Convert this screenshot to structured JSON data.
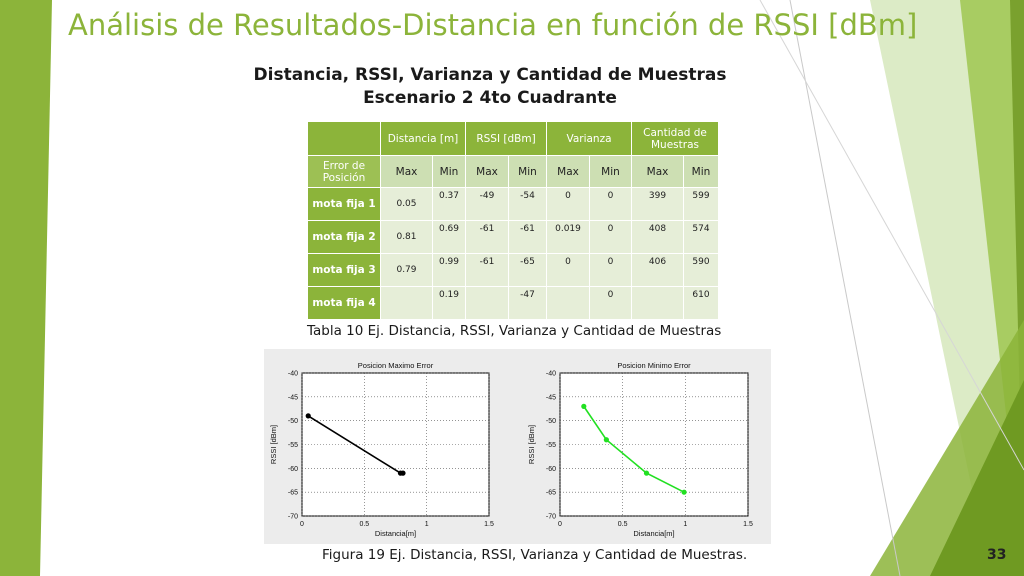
{
  "slide": {
    "title": "Análisis de Resultados-Distancia en función de RSSI [dBm]",
    "subtitle_line1": "Distancia, RSSI, Varianza y Cantidad de Muestras",
    "subtitle_line2": "Escenario 2  4to Cuadrante",
    "table_caption": "Tabla 10 Ej. Distancia, RSSI, Varianza y Cantidad de Muestras",
    "figure_caption": "Figura 19 Ej. Distancia, RSSI, Varianza y Cantidad de Muestras.",
    "page_number": "33",
    "colors": {
      "accent": "#8cb43a",
      "light_green": "#cddfb3",
      "cell_bg": "#e6eed8"
    }
  },
  "table": {
    "group_headers": {
      "distancia": "Distancia [m]",
      "rssi": "RSSI [dBm]",
      "varianza": "Varianza",
      "cantidad": "Cantidad de Muestras"
    },
    "row_label_header": "Error de Posición",
    "sub_headers": [
      "Max",
      "Min",
      "Max",
      "Min",
      "Max",
      "Min",
      "Max",
      "Min"
    ],
    "rows": [
      {
        "label": "mota fija 1",
        "values": [
          "0.05",
          "0.37",
          "-49",
          "-54",
          "0",
          "0",
          "399",
          "599"
        ]
      },
      {
        "label": "mota fija 2",
        "values": [
          "0.81",
          "0.69",
          "-61",
          "-61",
          "0.019",
          "0",
          "408",
          "574"
        ]
      },
      {
        "label": "mota fija 3",
        "values": [
          "0.79",
          "0.99",
          "-61",
          "-65",
          "0",
          "0",
          "406",
          "590"
        ]
      },
      {
        "label": "mota fija 4",
        "values": [
          "",
          "0.19",
          "",
          "-47",
          "",
          "0",
          "",
          "610"
        ]
      }
    ]
  },
  "chart_data": [
    {
      "type": "line",
      "title": "Posicion Maximo Error",
      "xlabel": "Distancia[m]",
      "ylabel": "RSSI [dBm]",
      "xlim": [
        0,
        1.5
      ],
      "ylim": [
        -70,
        -40
      ],
      "xticks": [
        "0",
        "0.5",
        "1",
        "1.5"
      ],
      "yticks": [
        "-40",
        "-45",
        "-50",
        "-55",
        "-60",
        "-65",
        "-70"
      ],
      "grid": true,
      "color": "#000000",
      "x": [
        0.05,
        0.79,
        0.81
      ],
      "y": [
        -49,
        -61,
        -61
      ]
    },
    {
      "type": "line",
      "title": "Posicion Minimo Error",
      "xlabel": "Distancia[m]",
      "ylabel": "RSSI [dBm]",
      "xlim": [
        0,
        1.5
      ],
      "ylim": [
        -70,
        -40
      ],
      "xticks": [
        "0",
        "0.5",
        "1",
        "1.5"
      ],
      "yticks": [
        "-40",
        "-45",
        "-50",
        "-55",
        "-60",
        "-65",
        "-70"
      ],
      "grid": true,
      "color": "#22e022",
      "x": [
        0.19,
        0.37,
        0.69,
        0.99
      ],
      "y": [
        -47,
        -54,
        -61,
        -65
      ]
    }
  ]
}
